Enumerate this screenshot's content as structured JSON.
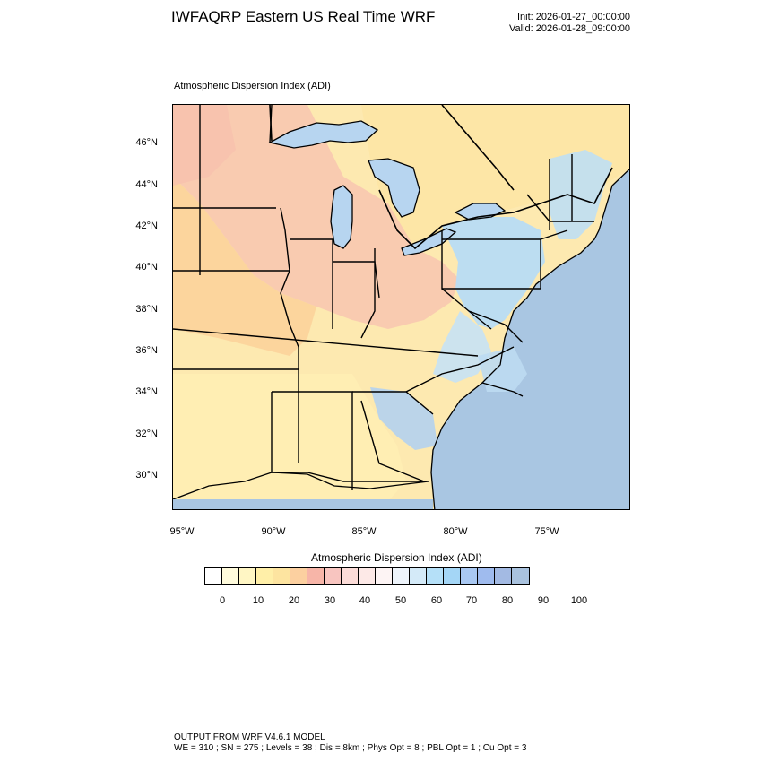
{
  "header": {
    "title": "IWFAQRP Eastern US Real Time WRF",
    "init": "Init: 2026-01-27_00:00:00",
    "valid": "Valid: 2026-01-28_09:00:00"
  },
  "plot": {
    "title": "Atmospheric Dispersion Index   (ADI)",
    "lat_labels": [
      "46°N",
      "44°N",
      "42°N",
      "40°N",
      "38°N",
      "36°N",
      "34°N",
      "32°N",
      "30°N"
    ],
    "lon_labels": [
      "95°W",
      "90°W",
      "85°W",
      "80°W",
      "75°W"
    ],
    "colors": {
      "ocean": "#a9c6e2",
      "lake": "#b7d5f0",
      "land_base": "#fde9b0",
      "border": "#000000"
    }
  },
  "legend": {
    "title": "Atmospheric Dispersion Index  (ADI)",
    "labels": [
      "0",
      "10",
      "20",
      "30",
      "40",
      "50",
      "60",
      "70",
      "80",
      "90",
      "100"
    ],
    "colors": [
      "#ffffff",
      "#fffbdc",
      "#fff6c4",
      "#ffefa8",
      "#fde4a0",
      "#fcd0a0",
      "#f7b5a8",
      "#f8c5c0",
      "#fcdcd8",
      "#fde9e7",
      "#fdf4f4",
      "#eef4fb",
      "#d4eaf8",
      "#b5e0f8",
      "#a4d6f6",
      "#a9c8f2",
      "#9fbbee",
      "#a3bae3",
      "#a9c2de"
    ]
  },
  "footer": {
    "line1": "OUTPUT FROM WRF V4.6.1 MODEL",
    "line2": "WE = 310 ; SN = 275 ; Levels = 38 ; Dis = 8km ; Phys Opt = 8 ; PBL Opt = 1 ; Cu Opt = 3"
  }
}
